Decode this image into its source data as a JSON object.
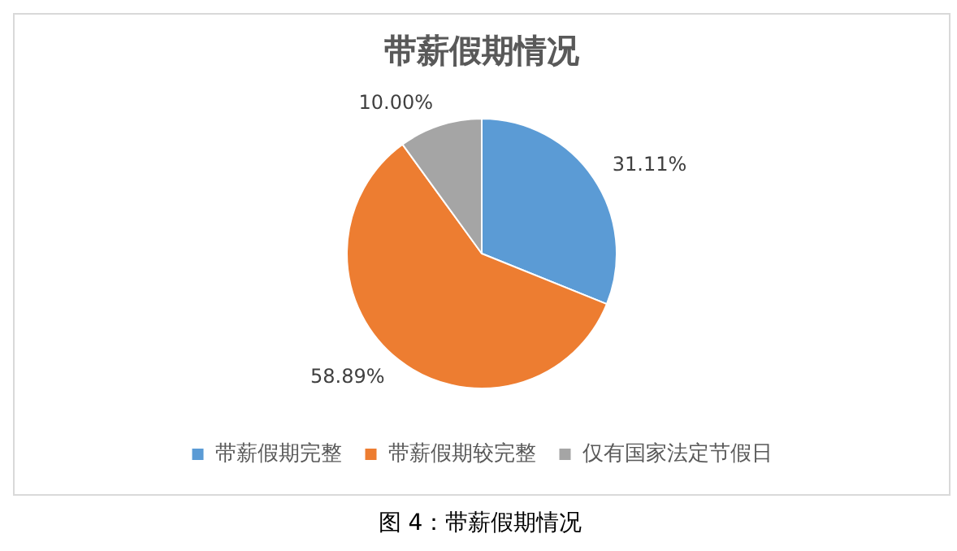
{
  "chart_data": {
    "type": "pie",
    "title": "带薪假期情况",
    "categories": [
      "带薪假期完整",
      "带薪假期较完整",
      "仅有国家法定节假日"
    ],
    "values": [
      31.11,
      58.89,
      10.0
    ],
    "colors": [
      "#5b9bd5",
      "#ed7d31",
      "#a5a5a5"
    ],
    "value_labels": [
      "31.11%",
      "58.89%",
      "10.00%"
    ],
    "legend": "bottom",
    "annotations": [
      "图 4：带薪假期情况"
    ]
  }
}
